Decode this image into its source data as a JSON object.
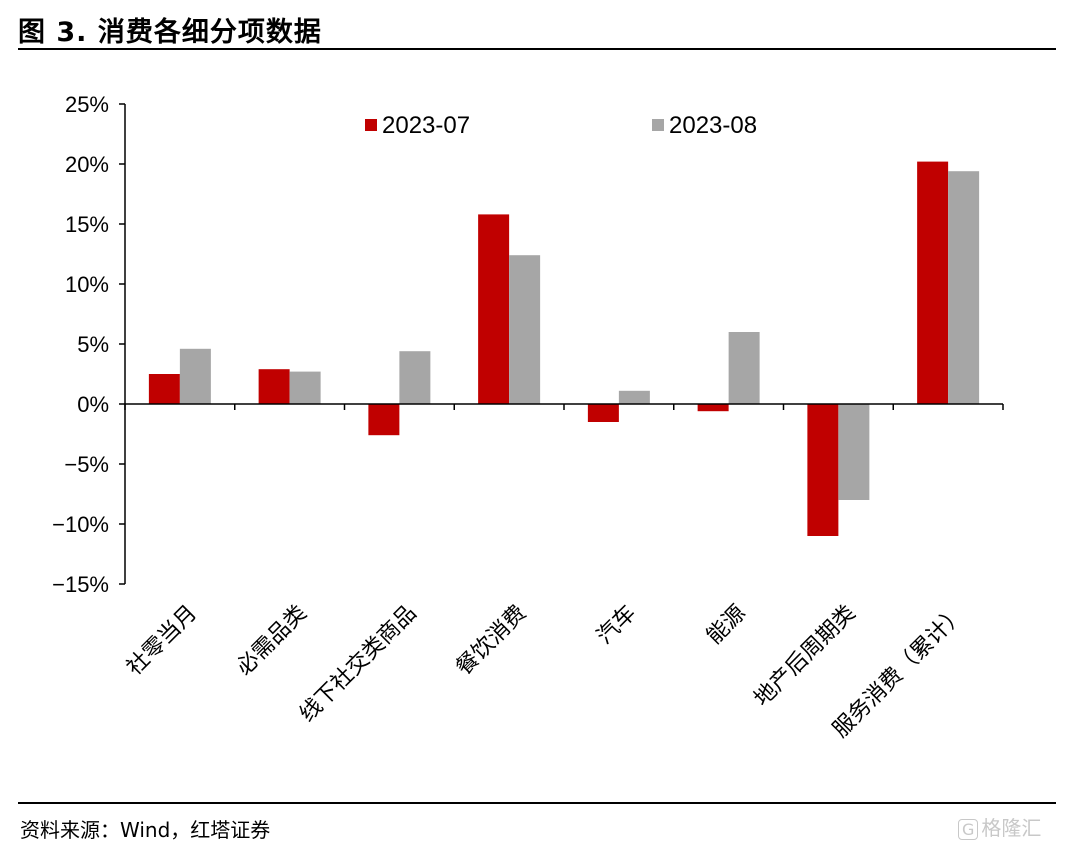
{
  "figure": {
    "title": "图 3. 消费各细分项数据",
    "source": "资料来源：Wind，红塔证券",
    "watermark_box": "G",
    "watermark_text": "格隆汇"
  },
  "colors": {
    "series_0": "#c00000",
    "series_1": "#a6a6a6"
  },
  "chart_data": {
    "type": "bar",
    "categories": [
      "社零当月",
      "必需品类",
      "线下社交类商品",
      "餐饮消费",
      "汽车",
      "能源",
      "地产后周期类",
      "服务消费（累计）"
    ],
    "series": [
      {
        "name": "2023-07",
        "values": [
          2.5,
          2.9,
          -2.6,
          15.8,
          -1.5,
          -0.6,
          -11.0,
          20.2
        ]
      },
      {
        "name": "2023-08",
        "values": [
          4.6,
          2.7,
          4.4,
          12.4,
          1.1,
          6.0,
          -8.0,
          19.4
        ]
      }
    ],
    "title": "",
    "xlabel": "",
    "ylabel": "",
    "ylim": [
      -15,
      25
    ],
    "yticks": [
      25,
      20,
      15,
      10,
      5,
      0,
      -5,
      -10,
      -15
    ],
    "ytick_labels": [
      "25%",
      "20%",
      "15%",
      "10%",
      "5%",
      "0%",
      "−5%",
      "−10%",
      "−15%"
    ],
    "legend_position": "top",
    "grid": false
  }
}
